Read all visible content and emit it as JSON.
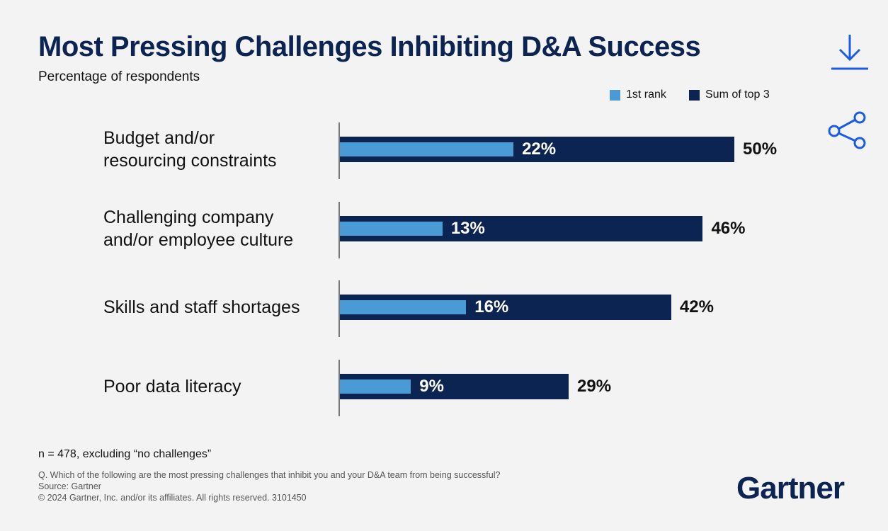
{
  "chart_data": {
    "type": "bar",
    "orientation": "horizontal",
    "overlay": true,
    "title": "Most Pressing Challenges Inhibiting D&A Success",
    "subtitle": "Percentage of respondents",
    "categories": [
      "Budget and/or\nresourcing constraints",
      "Challenging company\nand/or employee culture",
      "Skills and staff shortages",
      "Poor data literacy"
    ],
    "series": [
      {
        "name": "Sum of top 3",
        "color": "#0c2452",
        "values": [
          50,
          46,
          42,
          29
        ],
        "value_labels": [
          "50%",
          "46%",
          "42%",
          "29%"
        ]
      },
      {
        "name": "1st rank",
        "color": "#4a9ad6",
        "values": [
          22,
          13,
          16,
          9
        ],
        "value_labels": [
          "22%",
          "13%",
          "16%",
          "9%"
        ]
      }
    ],
    "legend_order": [
      1,
      0
    ],
    "legend_position": "top-right",
    "note": "n = 478, excluding “no challenges”",
    "footnotes": [
      "Q. Which of the following are the most pressing challenges that inhibit you and your D&A team from being successful?",
      "Source: Gartner",
      "© 2024 Gartner, Inc. and/or its affiliates. All rights reserved. 3101450"
    ],
    "logo": "Gartner"
  }
}
